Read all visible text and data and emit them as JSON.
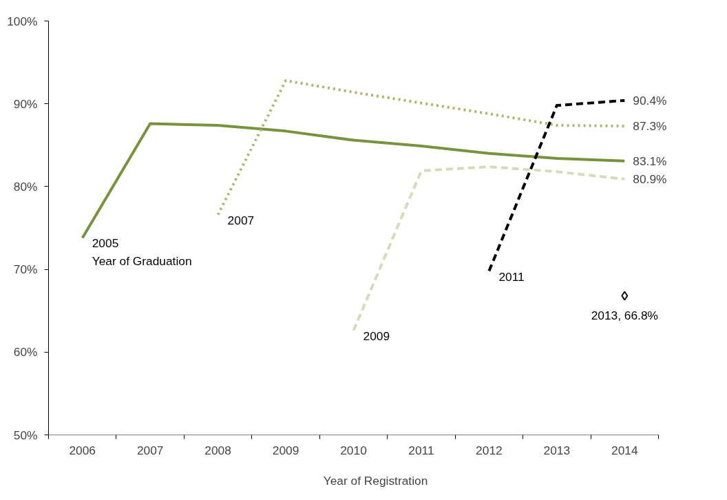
{
  "chart_data": {
    "type": "line",
    "xlabel": "Year of Registration",
    "categories": [
      "2006",
      "2007",
      "2008",
      "2009",
      "2010",
      "2011",
      "2012",
      "2013",
      "2014"
    ],
    "ylim": [
      50,
      100
    ],
    "yticks": [
      {
        "value": 50,
        "label": "50%"
      },
      {
        "value": 60,
        "label": "60%"
      },
      {
        "value": 70,
        "label": "70%"
      },
      {
        "value": 80,
        "label": "80%"
      },
      {
        "value": 90,
        "label": "90%"
      },
      {
        "value": 100,
        "label": "100%"
      }
    ],
    "grid": false,
    "series": [
      {
        "name": "2005",
        "color": "#77933c",
        "line_style": "solid",
        "values": [
          73.8,
          87.6,
          87.4,
          86.7,
          85.6,
          84.9,
          84.0,
          83.4,
          83.1
        ],
        "value_labels": [
          null,
          null,
          null,
          null,
          null,
          null,
          null,
          null,
          "83.1%"
        ]
      },
      {
        "name": "2007",
        "color": "#a9b96c",
        "line_style": "dotted",
        "values": [
          null,
          null,
          76.6,
          92.8,
          91.4,
          90.1,
          88.8,
          87.4,
          87.3
        ],
        "value_labels": [
          null,
          null,
          null,
          null,
          null,
          null,
          null,
          null,
          "87.3%"
        ]
      },
      {
        "name": "2009",
        "color": "#d6dcb8",
        "line_style": "dashed",
        "values": [
          null,
          null,
          null,
          null,
          62.6,
          81.9,
          82.4,
          81.8,
          80.9
        ],
        "value_labels": [
          null,
          null,
          null,
          null,
          null,
          null,
          null,
          null,
          "80.9%"
        ]
      },
      {
        "name": "2011",
        "color": "#000000",
        "line_style": "dashed",
        "values": [
          null,
          null,
          null,
          null,
          null,
          null,
          69.8,
          89.8,
          90.4
        ],
        "value_labels": [
          null,
          null,
          null,
          null,
          null,
          null,
          null,
          null,
          "90.4%"
        ]
      },
      {
        "type": "scatter",
        "marker": "diamond",
        "color": "#000000",
        "values": [
          null,
          null,
          null,
          null,
          null,
          null,
          null,
          null,
          66.8
        ]
      }
    ],
    "annotations": [
      {
        "text": "Year of Graduation",
        "x": "2006",
        "y": 73.8
      },
      {
        "text": "2013, 66.8%",
        "x": "2014",
        "y": 66.8
      }
    ]
  }
}
